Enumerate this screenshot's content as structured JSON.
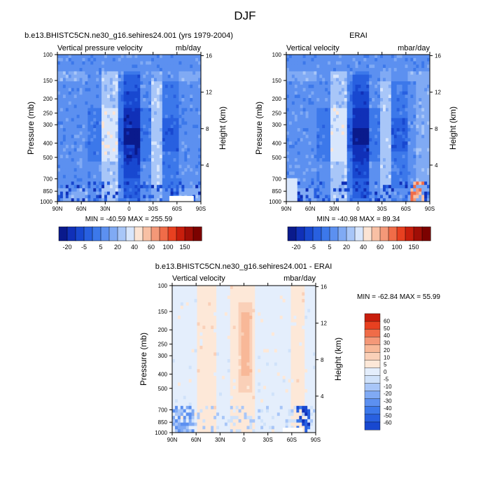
{
  "page": {
    "title": "DJF"
  },
  "colors": {
    "frame": "#000000",
    "missing": "#ffffff",
    "full_scale": [
      "#0a1a8c",
      "#1030b8",
      "#1848d0",
      "#2860e0",
      "#3c78ea",
      "#5c90f0",
      "#80aaf4",
      "#a8c6f8",
      "#d8e6fc",
      "#fce4d4",
      "#f8c0a4",
      "#f49878",
      "#f06c48",
      "#e84020",
      "#c81e0c",
      "#a00e06",
      "#7c0200"
    ],
    "diff_scale": [
      "#0a1a8c",
      "#1030b8",
      "#1848d0",
      "#2860e0",
      "#3c78ea",
      "#5c90f0",
      "#80aaf4",
      "#a8c6f8",
      "#d0e2fa",
      "#e4eefc",
      "#fde8d8",
      "#fad0b8",
      "#f8b898",
      "#f49878",
      "#f06c48",
      "#e84020",
      "#c81e0c",
      "#a00e06",
      "#7c0200"
    ]
  },
  "axes": {
    "pressure_label": "Pressure (mb)",
    "height_label": "Height (km)",
    "pressure_ticks": [
      "100",
      "150",
      "200",
      "250",
      "300",
      "400",
      "500",
      "700",
      "850",
      "1000"
    ],
    "height_ticks": [
      "16",
      "12",
      "8",
      "4"
    ],
    "lat_ticks": [
      "90N",
      "60N",
      "30N",
      "0",
      "30S",
      "60S",
      "90S"
    ]
  },
  "chart_data": [
    {
      "type": "heatmap",
      "panel": "model",
      "title": "b.e13.BHISTC5CN.ne30_g16.sehires24.001 (yrs 1979-2004)",
      "left_label": "Vertical pressure velocity",
      "right_label": "mb/day",
      "min_max_text": "MIN = -40.59   MAX = 255.59",
      "min": -40.59,
      "max": 255.59,
      "x_range": [
        90,
        -90
      ],
      "y_range_mb": [
        1000,
        100
      ],
      "colorbar_labels": [
        "-20",
        "-5",
        "5",
        "20",
        "40",
        "60",
        "100",
        "150"
      ]
    },
    {
      "type": "heatmap",
      "panel": "obs",
      "title": "ERAI",
      "left_label": "Vertical velocity",
      "right_label": "mbar/day",
      "min_max_text": "MIN = -40.98   MAX =  89.34",
      "min": -40.98,
      "max": 89.34,
      "x_range": [
        90,
        -90
      ],
      "y_range_mb": [
        1000,
        100
      ],
      "colorbar_labels": [
        "-20",
        "-5",
        "5",
        "20",
        "40",
        "60",
        "100",
        "150"
      ]
    },
    {
      "type": "heatmap",
      "panel": "diff",
      "title": "b.e13.BHISTC5CN.ne30_g16.sehires24.001 - ERAI",
      "left_label": "Vertical velocity",
      "right_label": "mbar/day",
      "min_max_text": "MIN = -62.84  MAX =  55.99",
      "min": -62.84,
      "max": 55.99,
      "x_range": [
        90,
        -90
      ],
      "y_range_mb": [
        1000,
        100
      ],
      "colorbar_labels": [
        "60",
        "50",
        "40",
        "30",
        "20",
        "10",
        "5",
        "0",
        "-5",
        "-10",
        "-20",
        "-30",
        "-40",
        "-50",
        "-60"
      ]
    }
  ]
}
